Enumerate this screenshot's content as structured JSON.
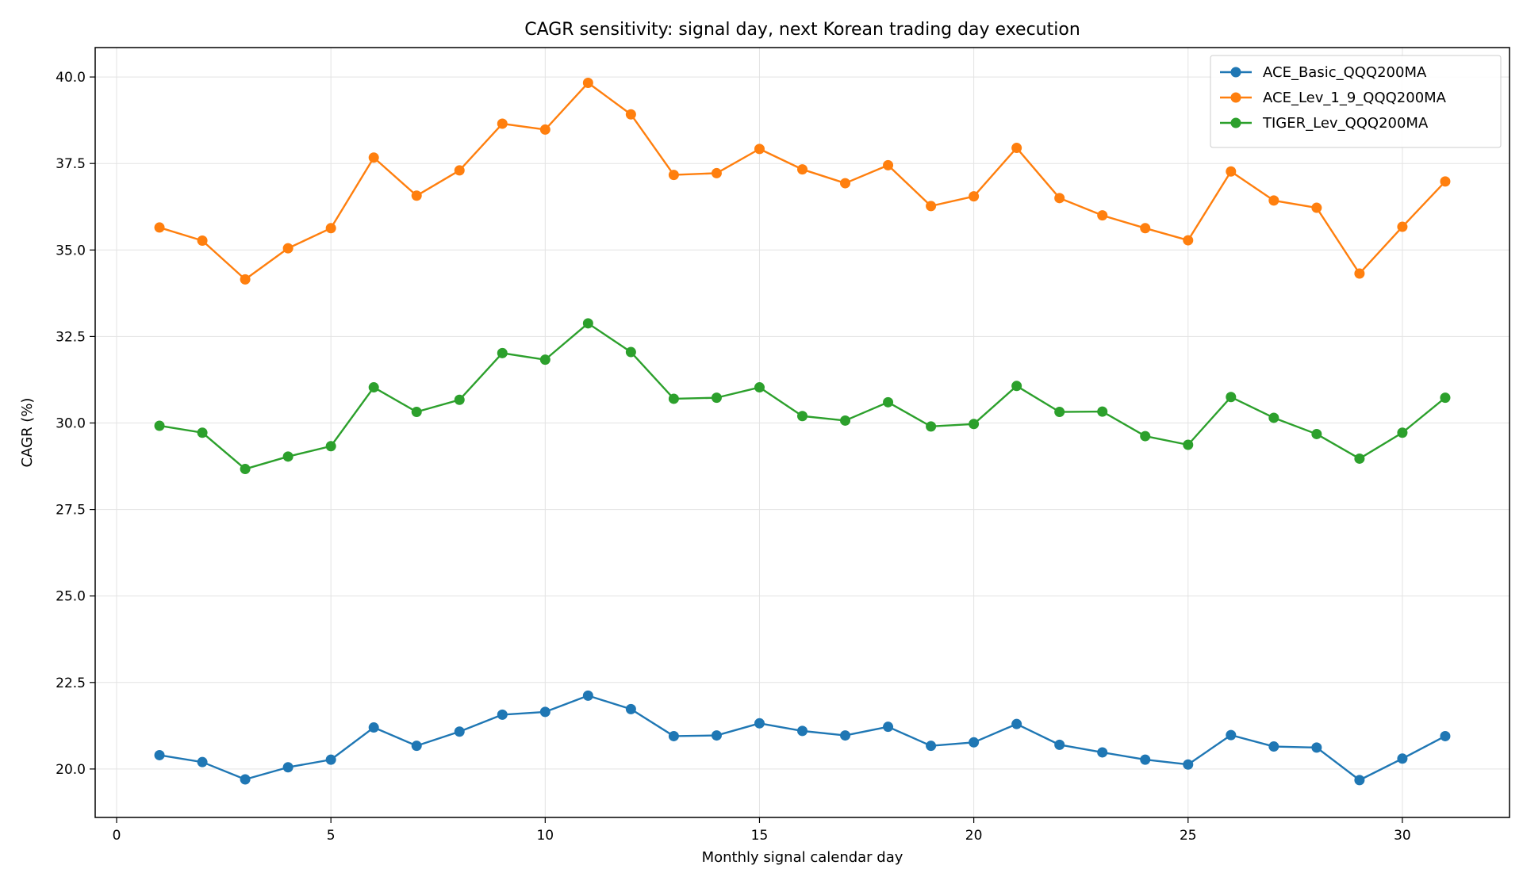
{
  "chart_data": {
    "type": "line",
    "title": "CAGR sensitivity: signal day, next Korean trading day execution",
    "xlabel": "Monthly signal calendar day",
    "ylabel": "CAGR (%)",
    "xlim": [
      -0.5,
      32.5
    ],
    "ylim": [
      18.6,
      40.85
    ],
    "xticks": [
      0,
      5,
      10,
      15,
      20,
      25,
      30
    ],
    "yticks": [
      20.0,
      22.5,
      25.0,
      27.5,
      30.0,
      32.5,
      35.0,
      37.5,
      40.0
    ],
    "grid": true,
    "legend_position": "top-right",
    "x": [
      1,
      2,
      3,
      4,
      5,
      6,
      7,
      8,
      9,
      10,
      11,
      12,
      13,
      14,
      15,
      16,
      17,
      18,
      19,
      20,
      21,
      22,
      23,
      24,
      25,
      26,
      27,
      28,
      29,
      30,
      31
    ],
    "series": [
      {
        "name": "ACE_Basic_QQQ200MA",
        "color": "#1f77b4",
        "values": [
          20.4,
          20.2,
          19.7,
          20.05,
          20.27,
          21.2,
          20.67,
          21.08,
          21.57,
          21.65,
          22.12,
          21.73,
          20.95,
          20.97,
          21.32,
          21.1,
          20.97,
          21.22,
          20.67,
          20.77,
          21.3,
          20.7,
          20.48,
          20.27,
          20.13,
          20.98,
          20.65,
          20.62,
          19.68,
          20.3,
          20.95
        ]
      },
      {
        "name": "ACE_Lev_1_9_QQQ200MA",
        "color": "#ff7f0e",
        "values": [
          35.65,
          35.27,
          34.15,
          35.05,
          35.63,
          37.67,
          36.57,
          37.3,
          38.65,
          38.48,
          39.83,
          38.92,
          37.17,
          37.22,
          37.92,
          37.33,
          36.93,
          37.45,
          36.27,
          36.55,
          37.95,
          36.5,
          36.0,
          35.63,
          35.28,
          37.27,
          36.43,
          36.22,
          34.32,
          35.67,
          36.98
        ]
      },
      {
        "name": "TIGER_Lev_QQQ200MA",
        "color": "#2ca02c",
        "values": [
          29.92,
          29.72,
          28.67,
          29.03,
          29.33,
          31.03,
          30.32,
          30.67,
          32.02,
          31.83,
          32.88,
          32.05,
          30.7,
          30.73,
          31.03,
          30.2,
          30.07,
          30.6,
          29.9,
          29.97,
          31.07,
          30.32,
          30.33,
          29.62,
          29.37,
          30.75,
          30.15,
          29.68,
          28.97,
          29.72,
          30.73
        ]
      }
    ]
  }
}
